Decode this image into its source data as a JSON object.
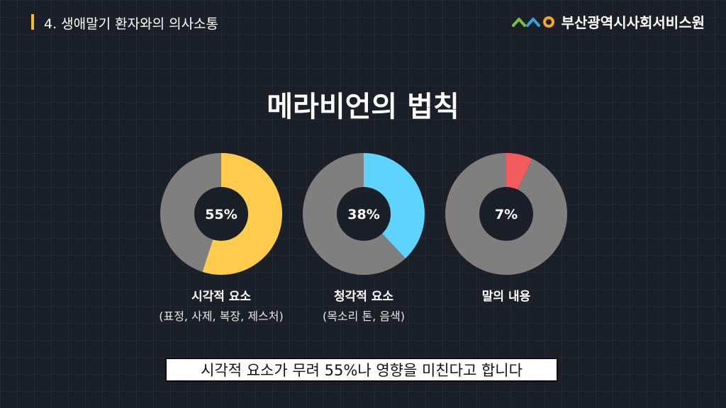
{
  "header": {
    "section_title": "4. 생애말기 환자와의 의사소통",
    "logo_text": "부산광역시사회서비스원",
    "logo_colors": [
      "#7bc043",
      "#3aa0d8",
      "#f5a623"
    ],
    "accent_color": "#f5b82e"
  },
  "main_title": "메라비언의 법칙",
  "chart_data": [
    {
      "type": "pie",
      "subtype": "donut",
      "value_label": "55%",
      "slices": [
        {
          "value": 55,
          "color": "#ffcc4d"
        },
        {
          "value": 45,
          "color": "#7f7f7f"
        }
      ],
      "label": "시각적 요소",
      "sublabel": "(표정, 사제, 복장, 제스처)"
    },
    {
      "type": "pie",
      "subtype": "donut",
      "value_label": "38%",
      "slices": [
        {
          "value": 38,
          "color": "#5fd3ff"
        },
        {
          "value": 62,
          "color": "#7f7f7f"
        }
      ],
      "label": "청각적 요소",
      "sublabel": "(목소리 톤, 음색)"
    },
    {
      "type": "pie",
      "subtype": "donut",
      "value_label": "7%",
      "slices": [
        {
          "value": 7,
          "color": "#f25c5c"
        },
        {
          "value": 93,
          "color": "#7f7f7f"
        }
      ],
      "label": "말의 내용",
      "sublabel": ""
    }
  ],
  "caption": "시각적 요소가 무려 55%나 영향을 미친다고 합니다"
}
